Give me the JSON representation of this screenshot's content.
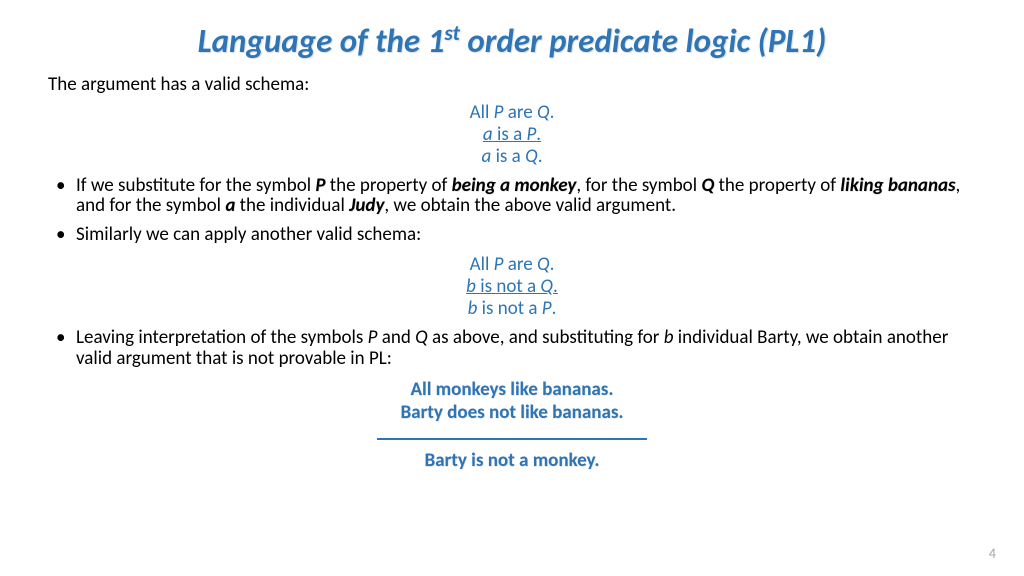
{
  "title_pre": "Language of the 1",
  "title_sup": "st",
  "title_post": " order predicate logic (PL1)",
  "intro": "The argument has a valid schema:",
  "schema1": {
    "line1_a": "All ",
    "line1_P": "P",
    "line1_b": " are ",
    "line1_Q": "Q",
    "line1_c": ".",
    "line2_a_it": "a",
    "line2_b": " is a ",
    "line2_P": "P",
    "line2_c": ".",
    "line3_a_it": "a",
    "line3_b": " is a ",
    "line3_Q": "Q",
    "line3_c": "."
  },
  "bullet1": {
    "t1": "If we substitute for the symbol ",
    "P": "P",
    "t2": " the property of ",
    "monkey": "being a monkey",
    "t3": ", for the symbol ",
    "Q": "Q",
    "t4": " the property of ",
    "bananas": "liking bananas",
    "t5": ", and for the symbol ",
    "a": "a",
    "t6": " the individual ",
    "judy": "Judy",
    "t7": ", we obtain the above valid argument."
  },
  "bullet2": "Similarly we can apply another valid schema:",
  "schema2": {
    "line1_a": "All ",
    "line1_P": "P",
    "line1_b": " are ",
    "line1_Q": "Q",
    "line1_c": ".",
    "line2_b": "b",
    "line2_t": " is not a ",
    "line2_Q": "Q",
    "line2_c": ".",
    "line3_b": "b",
    "line3_t": " is not a ",
    "line3_P": "P",
    "line3_c": "."
  },
  "bullet3": {
    "t1": "Leaving interpretation of the symbols ",
    "P": "P",
    "t2": " and ",
    "Q": "Q",
    "t3": " as above, and substituting for ",
    "b": "b",
    "t4": " individual Barty, we obtain another valid argument that is not provable in PL:"
  },
  "conclusion": {
    "l1": "All monkeys like bananas.",
    "l2": "Barty does not like bananas.",
    "l3": "Barty is not a monkey."
  },
  "page": "4"
}
